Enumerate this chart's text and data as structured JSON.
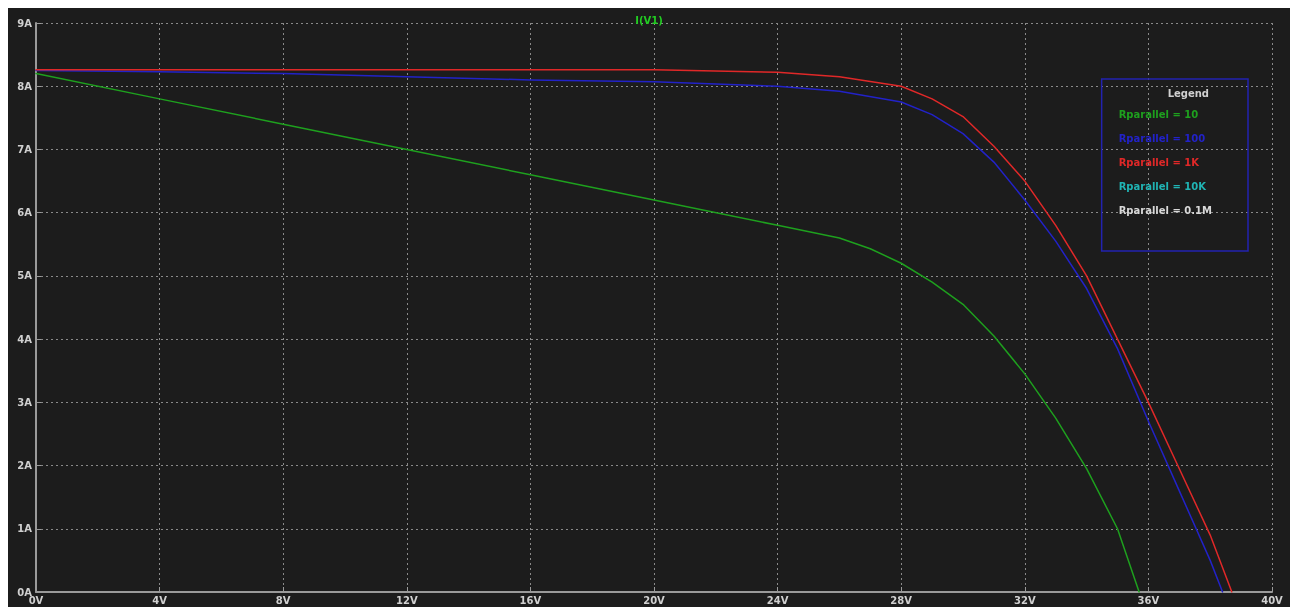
{
  "chart_data": {
    "type": "line",
    "title": "I(V1)",
    "legend_title": "Legend",
    "legend": "top right",
    "grid": true,
    "marker": "none",
    "line_style": "solid",
    "xlim": [
      0,
      40
    ],
    "ylim": [
      0,
      9
    ],
    "xticks": [
      {
        "value": 0,
        "label": "0V"
      },
      {
        "value": 4,
        "label": "4V"
      },
      {
        "value": 8,
        "label": "8V"
      },
      {
        "value": 12,
        "label": "12V"
      },
      {
        "value": 16,
        "label": "16V"
      },
      {
        "value": 20,
        "label": "20V"
      },
      {
        "value": 24,
        "label": "24V"
      },
      {
        "value": 28,
        "label": "28V"
      },
      {
        "value": 32,
        "label": "32V"
      },
      {
        "value": 36,
        "label": "36V"
      },
      {
        "value": 40,
        "label": "40V"
      }
    ],
    "yticks": [
      {
        "value": 0,
        "label": "0A"
      },
      {
        "value": 1,
        "label": "1A"
      },
      {
        "value": 2,
        "label": "2A"
      },
      {
        "value": 3,
        "label": "3A"
      },
      {
        "value": 4,
        "label": "4A"
      },
      {
        "value": 5,
        "label": "5A"
      },
      {
        "value": 6,
        "label": "6A"
      },
      {
        "value": 7,
        "label": "7A"
      },
      {
        "value": 8,
        "label": "8A"
      },
      {
        "value": 9,
        "label": "9A"
      }
    ],
    "series": [
      {
        "name": "Rparallel = 10",
        "color": "#1ea01e",
        "x": [
          0,
          4,
          8,
          12,
          16,
          20,
          24,
          26,
          27,
          28,
          29,
          30,
          31,
          32,
          33,
          34,
          35,
          35.7
        ],
        "values": [
          8.2,
          7.8,
          7.4,
          7.0,
          6.6,
          6.2,
          5.8,
          5.6,
          5.43,
          5.2,
          4.9,
          4.55,
          4.05,
          3.45,
          2.75,
          1.95,
          1.0,
          0
        ]
      },
      {
        "name": "Rparallel = 100",
        "color": "#2222c8",
        "x": [
          0,
          4,
          8,
          12,
          16,
          20,
          24,
          26,
          28,
          29,
          30,
          31,
          32,
          33,
          34,
          35,
          36,
          37,
          38,
          38.4
        ],
        "values": [
          8.25,
          8.23,
          8.2,
          8.15,
          8.1,
          8.07,
          8.0,
          7.92,
          7.75,
          7.55,
          7.25,
          6.8,
          6.2,
          5.55,
          4.8,
          3.85,
          2.7,
          1.6,
          0.5,
          0
        ]
      },
      {
        "name": "Rparallel = 1K",
        "color": "#e02828",
        "x": [
          0,
          4,
          8,
          12,
          16,
          20,
          24,
          26,
          28,
          29,
          30,
          31,
          32,
          33,
          34,
          35,
          36,
          37,
          38,
          38.7
        ],
        "values": [
          8.26,
          8.26,
          8.26,
          8.26,
          8.26,
          8.26,
          8.22,
          8.15,
          8.0,
          7.8,
          7.52,
          7.05,
          6.5,
          5.8,
          5.0,
          4.0,
          3.0,
          1.95,
          0.9,
          0
        ]
      },
      {
        "name": "Rparallel = 10K",
        "color": "#20b4b4"
      },
      {
        "name": "Rparallel = 0.1M",
        "color": "#d8d8d8"
      }
    ]
  }
}
